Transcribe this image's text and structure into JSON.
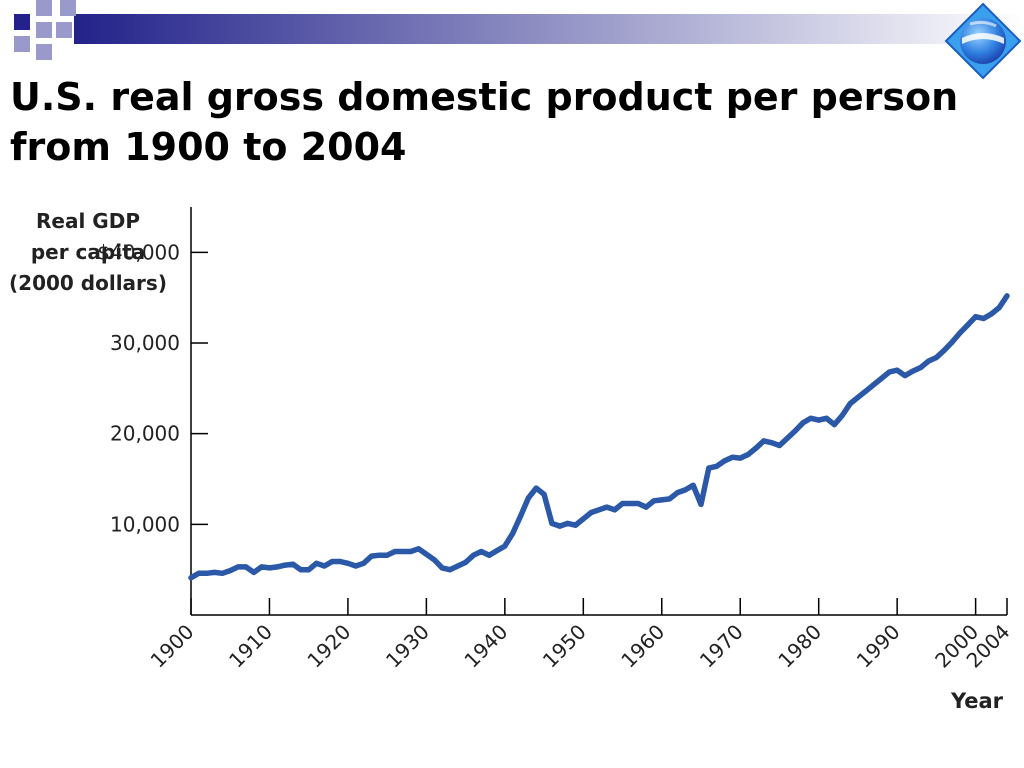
{
  "slide": {
    "title_line1": "U.S. real gross domestic product per person",
    "title_line2": "from 1900 to 2004",
    "logo_icon": "globe-logo-icon",
    "band_color": "#22228a",
    "accent_color": "#9999cc"
  },
  "chart_data": {
    "type": "line",
    "title": "U.S. real gross domestic product per person from 1900 to 2004",
    "ylabel_lines": [
      "Real GDP",
      "per capita",
      "(2000 dollars)"
    ],
    "xlabel": "Year",
    "ylim": [
      0,
      45000
    ],
    "xlim": [
      1900,
      2004
    ],
    "yticks": [
      {
        "value": 40000,
        "label": "$40,000"
      },
      {
        "value": 30000,
        "label": "30,000"
      },
      {
        "value": 20000,
        "label": "20,000"
      },
      {
        "value": 10000,
        "label": "10,000"
      }
    ],
    "xticks": [
      {
        "value": 1900,
        "label": "1900"
      },
      {
        "value": 1910,
        "label": "1910"
      },
      {
        "value": 1920,
        "label": "1920"
      },
      {
        "value": 1930,
        "label": "1930"
      },
      {
        "value": 1940,
        "label": "1940"
      },
      {
        "value": 1950,
        "label": "1950"
      },
      {
        "value": 1960,
        "label": "1960"
      },
      {
        "value": 1970,
        "label": "1970"
      },
      {
        "value": 1980,
        "label": "1980"
      },
      {
        "value": 1990,
        "label": "1990"
      },
      {
        "value": 2000,
        "label": "2000"
      },
      {
        "value": 2004,
        "label": "2004"
      }
    ],
    "grid": false,
    "line_color": "#2b59a8",
    "series": [
      {
        "x": [
          1900,
          1901,
          1902,
          1903,
          1904,
          1905,
          1906,
          1907,
          1908,
          1909,
          1910,
          1911,
          1912,
          1913,
          1914,
          1915,
          1916,
          1917,
          1918,
          1919,
          1920,
          1921,
          1922,
          1923,
          1924,
          1925,
          1926,
          1927,
          1928,
          1929,
          1930,
          1931,
          1932,
          1933,
          1934,
          1935,
          1936,
          1937,
          1938,
          1939,
          1940,
          1941,
          1942,
          1943,
          1944,
          1945,
          1946,
          1947,
          1948,
          1949,
          1950,
          1951,
          1952,
          1953,
          1954,
          1955,
          1956,
          1957,
          1958,
          1959,
          1960,
          1961,
          1962,
          1963,
          1964,
          1965,
          1966,
          1967,
          1968,
          1969,
          1970,
          1971,
          1972,
          1973,
          1974,
          1975,
          1976,
          1977,
          1978,
          1979,
          1980,
          1981,
          1982,
          1983,
          1984,
          1985,
          1986,
          1987,
          1988,
          1989,
          1990,
          1991,
          1992,
          1993,
          1994,
          1995,
          1996,
          1997,
          1998,
          1999,
          2000,
          2001,
          2002,
          2003,
          2004
        ],
        "y": [
          4100,
          4600,
          4600,
          4700,
          4600,
          4900,
          5300,
          5300,
          4700,
          5300,
          5200,
          5300,
          5500,
          5600,
          5000,
          5000,
          5700,
          5400,
          5900,
          5900,
          5700,
          5400,
          5700,
          6500,
          6600,
          6600,
          7000,
          7000,
          7000,
          7300,
          6700,
          6100,
          5200,
          5000,
          5400,
          5800,
          6600,
          7000,
          6600,
          7100,
          7600,
          9000,
          10900,
          12900,
          14000,
          13300,
          10100,
          9800,
          10100,
          9900,
          10600,
          11300,
          11600,
          11900,
          11600,
          12300,
          12300,
          12300,
          11900,
          12600,
          12700,
          12800,
          13500,
          13800,
          14300,
          12200,
          16200,
          16400,
          17000,
          17400,
          17300,
          17700,
          18400,
          19200,
          19000,
          18700,
          19500,
          20300,
          21200,
          21700,
          21500,
          21700,
          21000,
          22000,
          23300,
          24000,
          24700,
          25400,
          26100,
          26800,
          27000,
          26400,
          26900,
          27300,
          28000,
          28400,
          29200,
          30100,
          31100,
          32000,
          32900,
          32700,
          33200,
          33900,
          35200
        ]
      }
    ]
  }
}
